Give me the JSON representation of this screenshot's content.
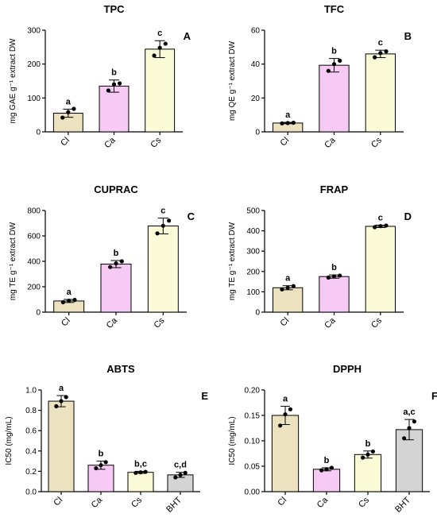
{
  "colors": {
    "Cl": "#ece2c0",
    "Ca": "#f7c9f5",
    "Cs": "#fbfbd8",
    "BHT": "#d4d4d4",
    "stroke": "#000000"
  },
  "chart_data": [
    {
      "type": "bar",
      "title": "TPC",
      "panel": "A",
      "ylabel": "mg GAE  g⁻¹ extract DW",
      "ylim": [
        0,
        300
      ],
      "yticks": [
        "0",
        "100",
        "200",
        "300"
      ],
      "categories": [
        "Cl",
        "Ca",
        "Cs"
      ],
      "values": [
        55,
        135,
        244
      ],
      "errors": [
        12,
        18,
        25
      ],
      "points": [
        [
          42,
          58,
          68
        ],
        [
          122,
          140,
          143
        ],
        [
          225,
          248,
          260
        ]
      ],
      "significance": [
        "a",
        "b",
        "c"
      ],
      "grid": false,
      "legend": "none"
    },
    {
      "type": "bar",
      "title": "TFC",
      "panel": "B",
      "ylabel": "mg QE g⁻¹ extract DW",
      "ylim": [
        0,
        60
      ],
      "yticks": [
        "0",
        "20",
        "40",
        "60"
      ],
      "categories": [
        "Cl",
        "Ca",
        "Cs"
      ],
      "values": [
        5.2,
        39.3,
        46
      ],
      "errors": [
        0.4,
        4,
        2.2
      ],
      "points": [
        [
          5,
          5.2,
          5.4
        ],
        [
          36,
          40,
          42
        ],
        [
          44,
          46.5,
          47.5
        ]
      ],
      "significance": [
        "a",
        "b",
        "c"
      ],
      "grid": false,
      "legend": "none"
    },
    {
      "type": "bar",
      "title": "CUPRAC",
      "panel": "C",
      "ylabel": "mg TE g⁻¹ extract DW",
      "ylim": [
        0,
        800
      ],
      "yticks": [
        "0",
        "200",
        "400",
        "600",
        "800"
      ],
      "categories": [
        "Cl",
        "Ca",
        "Cs"
      ],
      "values": [
        88,
        378,
        678
      ],
      "errors": [
        12,
        28,
        62
      ],
      "points": [
        [
          78,
          90,
          96
        ],
        [
          355,
          383,
          400
        ],
        [
          620,
          680,
          720
        ]
      ],
      "significance": [
        "a",
        "b",
        "c"
      ],
      "grid": false,
      "legend": "none"
    },
    {
      "type": "bar",
      "title": "FRAP",
      "panel": "D",
      "ylabel": "mg TE g⁻¹ extract DW",
      "ylim": [
        0,
        500
      ],
      "yticks": [
        "0",
        "100",
        "200",
        "300",
        "400",
        "500"
      ],
      "categories": [
        "Cl",
        "Ca",
        "Cs"
      ],
      "values": [
        120,
        175,
        422
      ],
      "errors": [
        10,
        8,
        6
      ],
      "points": [
        [
          112,
          120,
          128
        ],
        [
          170,
          176,
          180
        ],
        [
          418,
          423,
          426
        ]
      ],
      "significance": [
        "a",
        "b",
        "c"
      ],
      "grid": false,
      "legend": "none"
    },
    {
      "type": "bar",
      "title": "ABTS",
      "panel": "E",
      "ylabel": "IC50 (mg/mL)",
      "ylim": [
        0,
        1.0
      ],
      "yticks": [
        "0.0",
        "0.2",
        "0.4",
        "0.6",
        "0.8",
        "1.0"
      ],
      "categories": [
        "Cl",
        "Ca",
        "Cs",
        "BHT"
      ],
      "values": [
        0.89,
        0.26,
        0.19,
        0.165
      ],
      "errors": [
        0.055,
        0.04,
        0.01,
        0.025
      ],
      "points": [
        [
          0.84,
          0.89,
          0.93
        ],
        [
          0.23,
          0.26,
          0.29
        ],
        [
          0.185,
          0.19,
          0.195
        ],
        [
          0.14,
          0.165,
          0.185
        ]
      ],
      "significance": [
        "a",
        "b",
        "b,c",
        "c,d"
      ],
      "grid": false,
      "legend": "none"
    },
    {
      "type": "bar",
      "title": "DPPH",
      "panel": "F",
      "ylabel": "IC50 (mg/mL)",
      "ylim": [
        0,
        0.2
      ],
      "yticks": [
        "0.00",
        "0.05",
        "0.10",
        "0.15",
        "0.20"
      ],
      "categories": [
        "Cl",
        "Ca",
        "Cs",
        "BHT"
      ],
      "values": [
        0.15,
        0.044,
        0.073,
        0.122
      ],
      "errors": [
        0.018,
        0.003,
        0.007,
        0.02
      ],
      "points": [
        [
          0.13,
          0.152,
          0.162
        ],
        [
          0.042,
          0.044,
          0.047
        ],
        [
          0.067,
          0.073,
          0.079
        ],
        [
          0.105,
          0.125,
          0.138
        ]
      ],
      "significance": [
        "a",
        "b",
        "b",
        "a,c"
      ],
      "grid": false,
      "legend": "none"
    }
  ]
}
